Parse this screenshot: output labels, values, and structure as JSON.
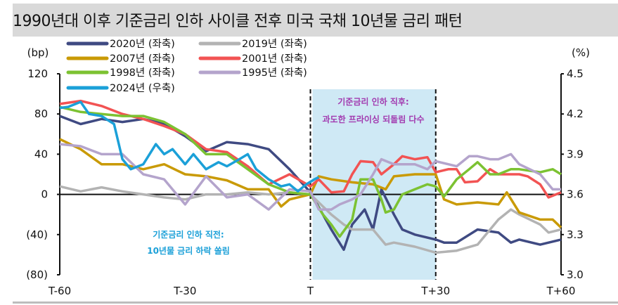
{
  "title": "1990년대 이후 기준금리 인하 사이클 전후 미국 국채 10년물 금리 패턴",
  "chart_data": {
    "type": "line",
    "title": "1990년대 이후 기준금리 인하 사이클 전후 미국 국채 10년물 금리 패턴",
    "left_axis": {
      "unit": "(bp)",
      "range": [
        -80,
        120
      ],
      "ticks": [
        120,
        80,
        40,
        0,
        -40,
        -80
      ],
      "tick_labels": [
        "120",
        "80",
        "40",
        "0",
        "(40)",
        "(80)"
      ]
    },
    "right_axis": {
      "unit": "(%)",
      "range": [
        3.0,
        4.5
      ],
      "ticks": [
        4.5,
        4.2,
        3.9,
        3.6,
        3.3,
        3.0
      ],
      "tick_labels": [
        "4.5",
        "4.2",
        "3.9",
        "3.6",
        "3.3",
        "3.0"
      ]
    },
    "x_axis": {
      "range": [
        -60,
        60
      ],
      "ticks": [
        -60,
        -30,
        0,
        30,
        60
      ],
      "tick_labels": [
        "T-60",
        "T-30",
        "T",
        "T+30",
        "T+60"
      ]
    },
    "grid": false,
    "legend_position": "top-left",
    "shaded_region": {
      "x": [
        0,
        30
      ],
      "color": "#cfe9f5"
    },
    "annotations": {
      "after": [
        "기준금리 인하 직후:",
        "과도한 프라이싱 되돌림 다수"
      ],
      "after_color": "#a23bb0",
      "before": [
        "기준금리 인하 직전:",
        "10년물 금리 하락 쏠림"
      ],
      "before_color": "#1ba0d8"
    },
    "series": [
      {
        "name": "2020년 (좌축)",
        "axis": "left",
        "color": "#3f4a82",
        "x": [
          -60,
          -55,
          -50,
          -45,
          -40,
          -35,
          -30,
          -25,
          -20,
          -15,
          -10,
          -5,
          0,
          3,
          5,
          8,
          10,
          13,
          15,
          17,
          20,
          22,
          25,
          30,
          32,
          35,
          40,
          45,
          48,
          50,
          55,
          60
        ],
        "y": [
          78,
          70,
          75,
          72,
          75,
          70,
          58,
          43,
          52,
          50,
          45,
          25,
          2,
          -20,
          -35,
          -55,
          -30,
          -15,
          -35,
          5,
          -20,
          -35,
          -40,
          -45,
          -48,
          -48,
          -35,
          -38,
          -48,
          -45,
          -50,
          -45
        ]
      },
      {
        "name": "2019년 (좌축)",
        "axis": "left",
        "color": "#b3b3b3",
        "x": [
          -60,
          -55,
          -50,
          -45,
          -40,
          -35,
          -30,
          -25,
          -20,
          -15,
          -10,
          -5,
          0,
          5,
          8,
          10,
          15,
          18,
          20,
          25,
          30,
          35,
          40,
          45,
          48,
          50,
          55,
          57,
          60
        ],
        "y": [
          8,
          3,
          7,
          3,
          0,
          -3,
          -5,
          0,
          0,
          2,
          0,
          2,
          0,
          -20,
          -30,
          -35,
          -35,
          -50,
          -48,
          -52,
          -58,
          -56,
          -50,
          -25,
          -15,
          -20,
          -30,
          -38,
          -35
        ]
      },
      {
        "name": "2007년 (좌축)",
        "axis": "left",
        "color": "#c99a06",
        "x": [
          -60,
          -55,
          -50,
          -45,
          -40,
          -35,
          -30,
          -25,
          -20,
          -15,
          -10,
          -7,
          -5,
          0,
          2,
          5,
          10,
          15,
          18,
          20,
          25,
          30,
          32,
          35,
          40,
          45,
          47,
          50,
          55,
          58,
          60
        ],
        "y": [
          55,
          45,
          30,
          30,
          25,
          30,
          20,
          18,
          14,
          5,
          5,
          -12,
          -5,
          0,
          18,
          15,
          12,
          10,
          5,
          18,
          20,
          20,
          -5,
          -10,
          -8,
          -10,
          2,
          -18,
          -25,
          -25,
          -33
        ]
      },
      {
        "name": "2001년 (좌축)",
        "axis": "left",
        "color": "#f25353",
        "x": [
          -60,
          -55,
          -50,
          -45,
          -40,
          -35,
          -30,
          -25,
          -20,
          -15,
          -10,
          -5,
          0,
          2,
          5,
          8,
          10,
          12,
          15,
          17,
          20,
          22,
          25,
          28,
          30,
          33,
          35,
          37,
          40,
          43,
          45,
          50,
          52,
          55,
          57,
          60
        ],
        "y": [
          90,
          93,
          88,
          80,
          75,
          68,
          60,
          45,
          42,
          28,
          10,
          20,
          8,
          15,
          2,
          3,
          20,
          33,
          32,
          20,
          30,
          38,
          35,
          37,
          22,
          25,
          25,
          12,
          13,
          25,
          20,
          20,
          18,
          10,
          -3,
          2
        ]
      },
      {
        "name": "1998년 (좌축)",
        "axis": "left",
        "color": "#7cc232",
        "x": [
          -60,
          -55,
          -50,
          -45,
          -40,
          -35,
          -30,
          -25,
          -20,
          -15,
          -10,
          -5,
          0,
          3,
          5,
          7,
          10,
          12,
          15,
          17,
          18,
          20,
          22,
          25,
          28,
          30,
          32,
          35,
          38,
          40,
          43,
          45,
          48,
          50,
          55,
          58,
          60
        ],
        "y": [
          87,
          82,
          80,
          78,
          78,
          72,
          60,
          40,
          40,
          25,
          10,
          2,
          0,
          -20,
          -30,
          -42,
          -25,
          15,
          15,
          -5,
          -18,
          -15,
          0,
          5,
          10,
          8,
          -2,
          15,
          25,
          32,
          20,
          20,
          25,
          25,
          22,
          25,
          20
        ]
      },
      {
        "name": "1995년 (좌축)",
        "axis": "left",
        "color": "#b4a4cc",
        "x": [
          -60,
          -55,
          -50,
          -45,
          -40,
          -35,
          -30,
          -25,
          -20,
          -15,
          -10,
          -5,
          0,
          2,
          5,
          7,
          10,
          12,
          15,
          17,
          20,
          22,
          25,
          28,
          30,
          33,
          35,
          38,
          40,
          43,
          45,
          48,
          50,
          55,
          58,
          60
        ],
        "y": [
          50,
          48,
          40,
          40,
          20,
          15,
          -10,
          18,
          -3,
          0,
          -15,
          5,
          3,
          -15,
          -15,
          -10,
          -5,
          0,
          20,
          35,
          30,
          30,
          30,
          25,
          33,
          30,
          28,
          38,
          38,
          35,
          35,
          40,
          30,
          20,
          5,
          5
        ]
      },
      {
        "name": "2024년 (우축)",
        "axis": "right",
        "color": "#1ba0d8",
        "x": [
          -60,
          -58,
          -55,
          -53,
          -50,
          -47,
          -45,
          -43,
          -40,
          -37,
          -35,
          -33,
          -30,
          -28,
          -25,
          -22,
          -20,
          -17,
          -15,
          -13,
          -10,
          -7,
          -5,
          -3,
          -1,
          1,
          2
        ],
        "y": [
          4.245,
          4.253,
          4.29,
          4.2,
          4.185,
          4.125,
          3.863,
          3.788,
          3.825,
          3.975,
          3.9,
          3.938,
          3.825,
          3.9,
          3.788,
          3.84,
          3.81,
          3.863,
          3.9,
          3.788,
          3.713,
          3.66,
          3.675,
          3.623,
          3.675,
          3.713,
          3.728
        ]
      }
    ]
  }
}
